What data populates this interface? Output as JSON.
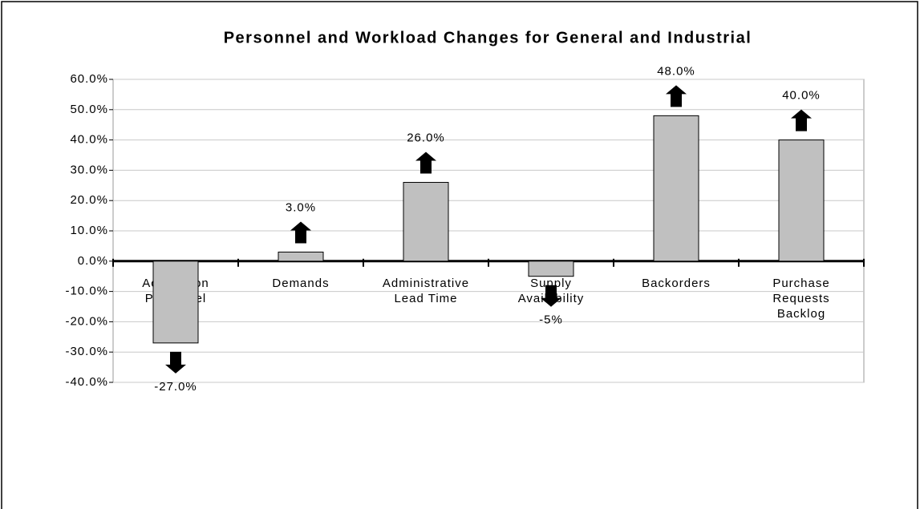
{
  "chart_data": {
    "type": "bar",
    "title": "Personnel and Workload Changes for General and Industrial",
    "categories": [
      [
        "Acquisition",
        "Personnel"
      ],
      [
        "Demands"
      ],
      [
        "Administrative",
        "Lead Time"
      ],
      [
        "Supply",
        "Availability"
      ],
      [
        "Backorders"
      ],
      [
        "Purchase",
        "Requests",
        "Backlog"
      ]
    ],
    "values": [
      -27,
      3,
      26,
      -5,
      48,
      40
    ],
    "value_labels": [
      "-27.0%",
      "3.0%",
      "26.0%",
      "-5%",
      "48.0%",
      "40.0%"
    ],
    "color": "#c0c0c0",
    "ylim": [
      -40,
      60
    ],
    "yticks": [
      {
        "value": -40,
        "label": "-40.0%"
      },
      {
        "value": -30,
        "label": "-30.0%"
      },
      {
        "value": -20,
        "label": "-20.0%"
      },
      {
        "value": -10,
        "label": "-10.0%"
      },
      {
        "value": 0,
        "label": "0.0%"
      },
      {
        "value": 10,
        "label": "10.0%"
      },
      {
        "value": 20,
        "label": "20.0%"
      },
      {
        "value": 30,
        "label": "30.0%"
      },
      {
        "value": 40,
        "label": "40.0%"
      },
      {
        "value": 50,
        "label": "50.0%"
      },
      {
        "value": 60,
        "label": "60.0%"
      }
    ],
    "grid": true
  }
}
